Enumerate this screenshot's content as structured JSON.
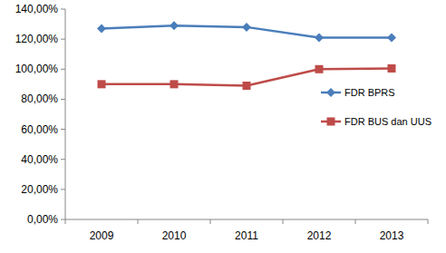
{
  "chart_data": {
    "type": "line",
    "categories": [
      "2009",
      "2010",
      "2011",
      "2012",
      "2013"
    ],
    "series": [
      {
        "name": "FDR BPRS",
        "color": "#4a7ebb",
        "marker": "diamond",
        "values": [
          127,
          129,
          128,
          121,
          121
        ]
      },
      {
        "name": "FDR BUS dan UUS",
        "color": "#be4b48",
        "marker": "square",
        "values": [
          90,
          90,
          89,
          100,
          100.5
        ]
      }
    ],
    "ylim": [
      0,
      140
    ],
    "yticks": [
      {
        "value": 0,
        "label": "0,00%"
      },
      {
        "value": 20,
        "label": "20,00%"
      },
      {
        "value": 40,
        "label": "40,00%"
      },
      {
        "value": 60,
        "label": "60,00%"
      },
      {
        "value": 80,
        "label": "80,00%"
      },
      {
        "value": 100,
        "label": "100,00%"
      },
      {
        "value": 120,
        "label": "120,00%"
      },
      {
        "value": 140,
        "label": "140,00%"
      }
    ],
    "grid": false,
    "legend": "right"
  }
}
